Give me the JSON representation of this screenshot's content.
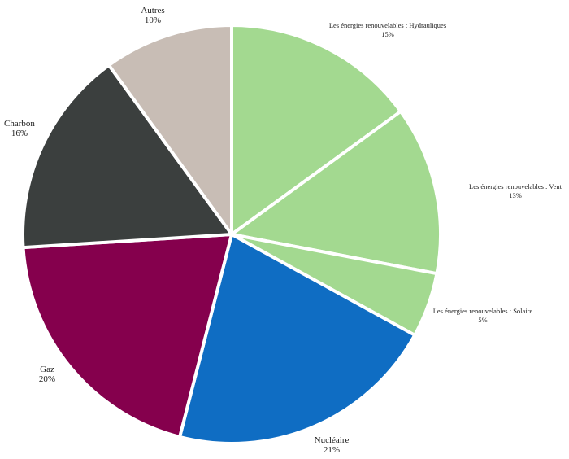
{
  "chart_data": {
    "type": "pie",
    "title": "",
    "start_angle_deg": 0,
    "direction": "clockwise",
    "slices": [
      {
        "label": "Les énergies renouvelables : Hydrauliques",
        "value": 15,
        "display": "15%",
        "color": "#a3d990"
      },
      {
        "label": "Les énergies renouvelables : Vent",
        "value": 13,
        "display": "13%",
        "color": "#a3d990"
      },
      {
        "label": "Les énergies renouvelables : Solaire",
        "value": 5,
        "display": "5%",
        "color": "#a3d990"
      },
      {
        "label": "Nucléaire",
        "value": 21,
        "display": "21%",
        "color": "#0f6dc3"
      },
      {
        "label": "Gaz",
        "value": 20,
        "display": "20%",
        "color": "#85004d"
      },
      {
        "label": "Charbon",
        "value": 16,
        "display": "16%",
        "color": "#3b3f3e"
      },
      {
        "label": "Autres",
        "value": 10,
        "display": "10%",
        "color": "#c8bdb5"
      }
    ]
  }
}
